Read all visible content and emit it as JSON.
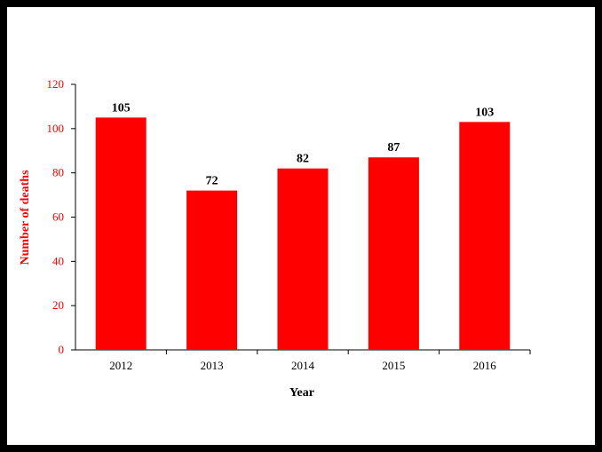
{
  "chart_data": {
    "type": "bar",
    "categories": [
      "2012",
      "2013",
      "2014",
      "2015",
      "2016"
    ],
    "values": [
      105,
      72,
      82,
      87,
      103
    ],
    "data_labels": [
      "105",
      "72",
      "82",
      "87",
      "103"
    ],
    "xlabel": "Year",
    "ylabel": "Number of deaths",
    "ylim": [
      0,
      120
    ],
    "yticks": [
      "0",
      "20",
      "40",
      "60",
      "80",
      "100",
      "120"
    ],
    "grid": false,
    "colors": {
      "bar": "#ff0000",
      "y_axis_text": "#ff0000",
      "x_axis_text": "#000000",
      "data_label": "#000000"
    }
  }
}
